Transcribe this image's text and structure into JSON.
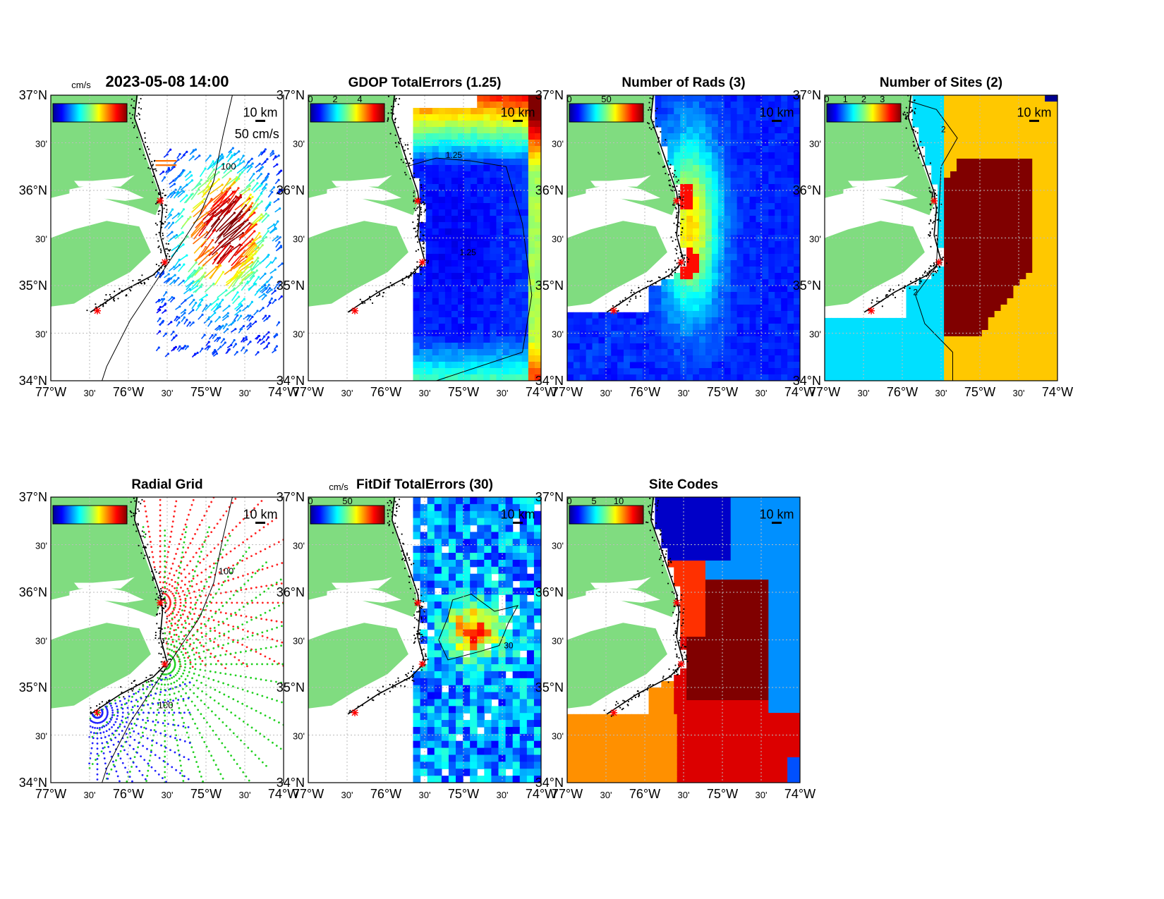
{
  "figure": {
    "lat_labels": [
      "37°N",
      "30'",
      "36°N",
      "30'",
      "35°N",
      "30'",
      "34°N"
    ],
    "lon_labels": [
      "77°W",
      "30'",
      "76°W",
      "30'",
      "75°W",
      "30'",
      "74°W"
    ],
    "scale_label": "10 km",
    "colors": {
      "land": "#80dc80",
      "coast": "#000000",
      "site_marker": "#ff0000",
      "cyan": "#00e0ff",
      "gold": "#ffc800",
      "darkred": "#800000"
    }
  },
  "panels": [
    {
      "id": "total-vectors",
      "title": "2023-05-08 14:00",
      "colorbar_unit": "cm/s",
      "colorbar_ticks": [],
      "vector_scale_label": "50 cm/s",
      "contour_label": "100"
    },
    {
      "id": "gdop",
      "title": "GDOP TotalErrors (1.25)",
      "colorbar_ticks": [
        "0",
        "2",
        "4"
      ],
      "contour_label": "1.25"
    },
    {
      "id": "number-of-rads",
      "title": "Number of Rads (3)",
      "colorbar_ticks": [
        "0",
        "50"
      ]
    },
    {
      "id": "number-of-sites",
      "title": "Number of Sites (2)",
      "colorbar_ticks": [
        "0",
        "1",
        "2",
        "3"
      ],
      "contour_label": "2"
    },
    {
      "id": "radial-grid",
      "title": "Radial Grid",
      "colorbar_ticks": [],
      "contour_label": "100"
    },
    {
      "id": "fitdif",
      "title": "FitDif TotalErrors (30)",
      "colorbar_unit": "cm/s",
      "colorbar_ticks": [
        "0",
        "50"
      ],
      "contour_label": "30"
    },
    {
      "id": "site-codes",
      "title": "Site Codes",
      "colorbar_ticks": [
        "0",
        "5",
        "10"
      ]
    }
  ]
}
